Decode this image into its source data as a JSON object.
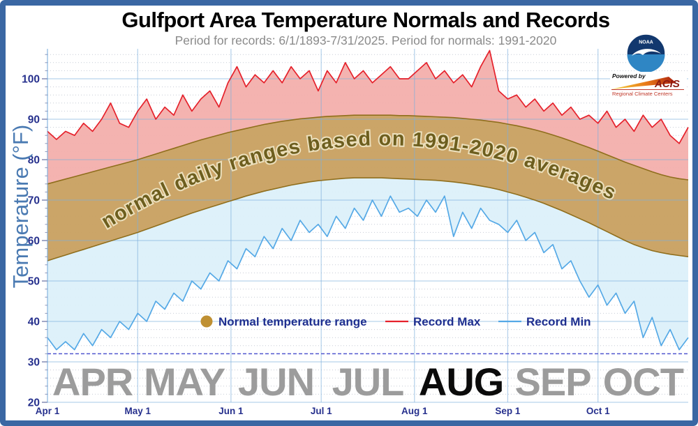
{
  "header": {
    "title": "Gulfport Area Temperature Normals and Records",
    "subtitle": "Period for records: 6/1/1893-7/31/2025. Period for normals: 1991-2020"
  },
  "logos": {
    "noaa_label": "NOAA",
    "acis_powered_by": "Powered by",
    "acis_name": "ACIS",
    "acis_tagline": "Regional Climate Centers"
  },
  "y_axis": {
    "label": "Temperature (°F)",
    "ticks": [
      20,
      30,
      40,
      50,
      60,
      70,
      80,
      90,
      100
    ]
  },
  "x_axis": {
    "tick_labels": [
      "Apr 1",
      "May 1",
      "Jun 1",
      "Jul 1",
      "Aug 1",
      "Sep 1",
      "Oct 1"
    ],
    "month_day_starts": [
      0,
      30,
      61,
      91,
      122,
      153,
      183
    ]
  },
  "months_band": {
    "labels": [
      {
        "text": "APR",
        "emphasis": false
      },
      {
        "text": "MAY",
        "emphasis": false
      },
      {
        "text": "JUN",
        "emphasis": false
      },
      {
        "text": "JUL",
        "emphasis": false
      },
      {
        "text": "AUG",
        "emphasis": true
      },
      {
        "text": "SEP",
        "emphasis": false
      },
      {
        "text": "OCT",
        "emphasis": false
      }
    ],
    "color_normal": "#9c9c9c",
    "color_emphasis": "#0b0b0b"
  },
  "legend": {
    "items": [
      {
        "label": "Normal temperature range",
        "swatch": "dot",
        "color": "#bf9033"
      },
      {
        "label": "Record Max",
        "swatch": "line",
        "color": "#e5212b"
      },
      {
        "label": "Record Min",
        "swatch": "line",
        "color": "#55a9e6"
      }
    ]
  },
  "band_text": "normal daily ranges based on 1991-2020 averages",
  "freezing_line": {
    "value_f": 32,
    "color": "#5157cf"
  },
  "colors": {
    "frame": "#3a67a3",
    "grid_major": "rgba(125,175,220,0.55)",
    "grid_minor": "#c6cbd6",
    "axis_text": "#26308d",
    "subtitle": "#8a8a8a",
    "band_fill": "#c9a263",
    "band_edge": "#8f6e1c",
    "band_text_fill": "#6d5e1e",
    "band_text_outline": "#ece0bd",
    "record_max_line": "#e5212b",
    "record_max_fill": "#f3aca9",
    "record_min_line": "#55a9e6",
    "record_min_fill": "#dcf0fa",
    "y_axis_label": "#4a7ab2"
  },
  "chart_data": {
    "type": "area",
    "title": "Gulfport Area Temperature Normals and Records",
    "x_unit": "days since Apr 1",
    "x_step_days": 3,
    "total_days": 213,
    "ylim": [
      20,
      108
    ],
    "band_fill": "#c9a263",
    "series": [
      {
        "name": "Record Max",
        "role": "record_max",
        "line_color": "#e5212b",
        "fill_color": "#f3aca9",
        "values": [
          87,
          85,
          87,
          86,
          89,
          87,
          90,
          94,
          89,
          88,
          92,
          95,
          90,
          93,
          91,
          96,
          92,
          95,
          97,
          93,
          99,
          103,
          98,
          101,
          99,
          102,
          99,
          103,
          100,
          102,
          97,
          102,
          99,
          104,
          100,
          102,
          99,
          101,
          103,
          100,
          100,
          102,
          104,
          100,
          102,
          99,
          101,
          98,
          103,
          107,
          97,
          95,
          96,
          93,
          95,
          92,
          94,
          91,
          93,
          90,
          91,
          89,
          92,
          88,
          90,
          87,
          91,
          88,
          90,
          86,
          84,
          88
        ]
      },
      {
        "name": "Normal High (1991-2020)",
        "role": "normal_high",
        "line_color": "#8f6e1c",
        "values": [
          74.0,
          74.6,
          75.2,
          75.8,
          76.4,
          77.0,
          77.6,
          78.2,
          78.8,
          79.4,
          80.0,
          80.7,
          81.4,
          82.1,
          82.8,
          83.5,
          84.2,
          84.9,
          85.5,
          86.1,
          86.7,
          87.2,
          87.7,
          88.2,
          88.7,
          89.1,
          89.5,
          89.8,
          90.1,
          90.3,
          90.5,
          90.7,
          90.8,
          90.9,
          91.0,
          91.0,
          91.0,
          91.0,
          91.0,
          90.9,
          90.9,
          90.8,
          90.7,
          90.6,
          90.5,
          90.4,
          90.2,
          90.0,
          89.8,
          89.5,
          89.2,
          88.8,
          88.4,
          87.9,
          87.4,
          86.8,
          86.1,
          85.4,
          84.6,
          83.8,
          83.0,
          82.1,
          81.2,
          80.3,
          79.4,
          78.6,
          77.8,
          77.0,
          76.3,
          75.7,
          75.3,
          75.0
        ]
      },
      {
        "name": "Normal Low (1991-2020)",
        "role": "normal_low",
        "line_color": "#8f6e1c",
        "values": [
          55.0,
          55.7,
          56.4,
          57.1,
          57.8,
          58.5,
          59.2,
          59.9,
          60.6,
          61.3,
          62.0,
          62.8,
          63.6,
          64.4,
          65.2,
          66.0,
          66.8,
          67.5,
          68.2,
          68.9,
          69.6,
          70.3,
          71.0,
          71.6,
          72.2,
          72.7,
          73.2,
          73.7,
          74.1,
          74.5,
          74.8,
          75.0,
          75.2,
          75.4,
          75.5,
          75.5,
          75.5,
          75.5,
          75.4,
          75.3,
          75.2,
          75.1,
          75.0,
          74.9,
          74.7,
          74.5,
          74.2,
          73.9,
          73.5,
          73.1,
          72.6,
          72.0,
          71.4,
          70.7,
          70.0,
          69.2,
          68.3,
          67.4,
          66.4,
          65.4,
          64.4,
          63.3,
          62.2,
          61.1,
          60.0,
          59.0,
          58.2,
          57.5,
          57.0,
          56.6,
          56.3,
          56.0
        ]
      },
      {
        "name": "Record Min",
        "role": "record_min",
        "line_color": "#55a9e6",
        "fill_color": "#dcf0fa",
        "values": [
          36,
          33,
          35,
          33,
          37,
          34,
          38,
          36,
          40,
          38,
          42,
          40,
          45,
          43,
          47,
          45,
          50,
          48,
          52,
          50,
          55,
          53,
          58,
          56,
          61,
          58,
          63,
          60,
          65,
          62,
          64,
          61,
          66,
          63,
          68,
          65,
          70,
          66,
          71,
          67,
          68,
          66,
          70,
          67,
          71,
          61,
          67,
          63,
          68,
          65,
          64,
          62,
          65,
          60,
          62,
          57,
          59,
          53,
          55,
          50,
          46,
          49,
          44,
          47,
          42,
          45,
          36,
          41,
          34,
          38,
          33,
          36
        ]
      }
    ]
  }
}
